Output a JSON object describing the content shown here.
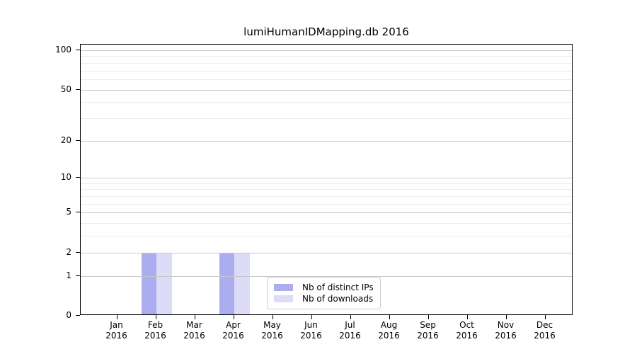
{
  "chart_data": {
    "type": "bar",
    "title": "lumiHumanIDMapping.db 2016",
    "categories": [
      "Jan",
      "Feb",
      "Mar",
      "Apr",
      "May",
      "Jun",
      "Jul",
      "Aug",
      "Sep",
      "Oct",
      "Nov",
      "Dec"
    ],
    "category_year": "2016",
    "series": [
      {
        "key": "distinct-ips",
        "name": "Nb of distinct IPs",
        "color": "#acacf0",
        "values": [
          0,
          2,
          0,
          2,
          0,
          0,
          0,
          0,
          0,
          0,
          0,
          0
        ]
      },
      {
        "key": "downloads",
        "name": "Nb of downloads",
        "color": "#dcdcf8",
        "values": [
          0,
          2,
          0,
          2,
          0,
          0,
          0,
          0,
          0,
          0,
          0,
          0
        ]
      }
    ],
    "y_ticks": [
      0,
      1,
      2,
      5,
      10,
      20,
      50,
      100
    ],
    "y_minor_ticks": [
      3,
      4,
      6,
      7,
      8,
      9,
      30,
      40,
      60,
      70,
      80,
      90
    ],
    "scale": "log1p",
    "ylim": [
      0,
      110
    ],
    "xlabel": "",
    "ylabel": "",
    "grid": true,
    "legend_position": "bottom-center"
  },
  "colors": {
    "axis": "#000000",
    "text": "#000000",
    "grid_major": "#c8c8c8",
    "grid_minor": "#ececec",
    "legend_border": "#cccccc",
    "background": "#ffffff"
  }
}
